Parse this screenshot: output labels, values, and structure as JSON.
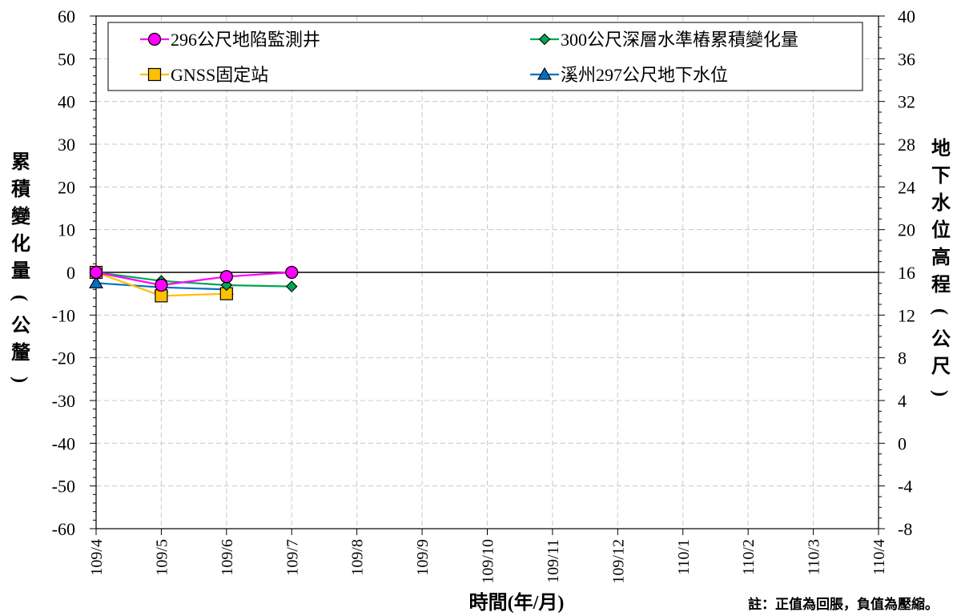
{
  "chart_data": {
    "type": "line",
    "x": [
      "109/4",
      "109/5",
      "109/6",
      "109/7",
      "109/8",
      "109/9",
      "109/10",
      "109/11",
      "109/12",
      "110/1",
      "110/2",
      "110/3",
      "110/4"
    ],
    "xlabel": "時間(年/月)",
    "ylabel": "累積變化量(公釐)",
    "y2label": "地下水位高程(公尺)",
    "ylim": [
      -60,
      60
    ],
    "y_ticks": [
      60,
      50,
      40,
      30,
      20,
      10,
      0,
      -10,
      -20,
      -30,
      -40,
      -50,
      -60
    ],
    "y2lim": [
      -8,
      40
    ],
    "y2_ticks": [
      40,
      36,
      32,
      28,
      24,
      20,
      16,
      12,
      8,
      4,
      0,
      -4,
      -8
    ],
    "grid": true,
    "legend_position": "top",
    "series": [
      {
        "name": "296公尺地陷監測井",
        "axis": "left",
        "color": "#ff00ff",
        "marker": "circle",
        "x": [
          "109/4",
          "109/5",
          "109/6",
          "109/7"
        ],
        "values": [
          0,
          -3,
          -1,
          0
        ]
      },
      {
        "name": "300公尺深層水準樁累積變化量",
        "axis": "left",
        "color": "#00a651",
        "marker": "diamond",
        "x": [
          "109/4",
          "109/5",
          "109/6",
          "109/7"
        ],
        "values": [
          0,
          -2,
          -3,
          -3.3
        ]
      },
      {
        "name": "GNSS固定站",
        "axis": "left",
        "color": "#ffc000",
        "marker": "square",
        "x": [
          "109/4",
          "109/5",
          "109/6"
        ],
        "values": [
          0,
          -5.5,
          -5
        ]
      },
      {
        "name": "溪州297公尺地下水位",
        "axis": "right",
        "color": "#0070c0",
        "marker": "triangle",
        "x": [
          "109/4",
          "109/5",
          "109/6"
        ],
        "values": [
          15,
          14.6,
          14.4
        ]
      }
    ]
  },
  "note": "註：正值為回脹，負值為壓縮。"
}
